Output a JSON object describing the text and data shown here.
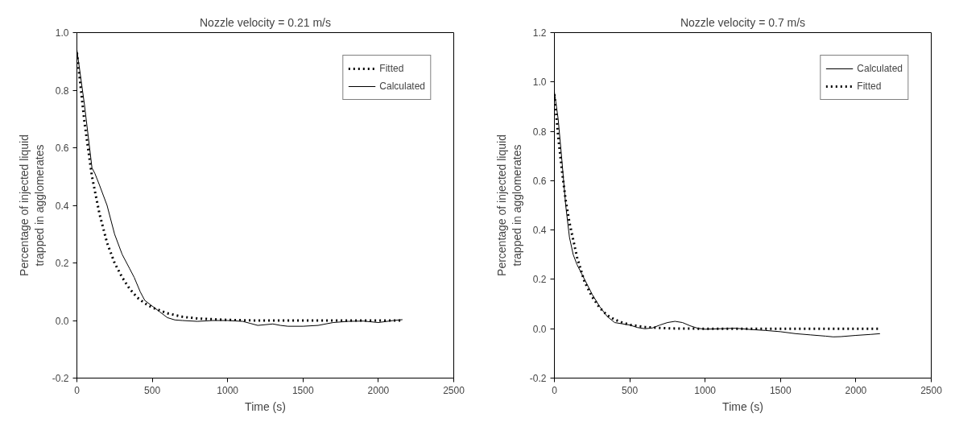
{
  "chart_data": [
    {
      "type": "line",
      "title": "Nozzle velocity = 0.21 m/s",
      "xlabel": "Time (s)",
      "ylabel": "Percentage of injected liquid\ntrapped in agglomerates",
      "xlim": [
        0,
        2500
      ],
      "xticks": [
        0,
        500,
        1000,
        1500,
        2000,
        2500
      ],
      "ylim": [
        -0.2,
        1.0
      ],
      "yticks": [
        {
          "value": -0.2,
          "label": "-0.2"
        },
        {
          "value": 0,
          "label": "0.0"
        },
        0.2,
        0.4,
        0.6,
        0.8,
        {
          "value": 1,
          "label": "1.0"
        }
      ],
      "grid": false,
      "legend": "top right",
      "marker": "none",
      "series": [
        {
          "name": "Fitted",
          "color": "#000000",
          "line_style": "dotted",
          "x": [
            0,
            50,
            100,
            150,
            200,
            250,
            300,
            350,
            400,
            450,
            500,
            600,
            700,
            800,
            1000,
            1200,
            1500,
            1800,
            2160
          ],
          "values": [
            0.93,
            0.69,
            0.5,
            0.37,
            0.27,
            0.2,
            0.15,
            0.11,
            0.08,
            0.06,
            0.045,
            0.025,
            0.013,
            0.007,
            0.002,
            0.0,
            0.0,
            0.0,
            0.0
          ]
        },
        {
          "name": "Calculated",
          "color": "#000000",
          "line_style": "solid",
          "x": [
            0,
            50,
            100,
            120,
            150,
            200,
            250,
            300,
            350,
            380,
            420,
            450,
            500,
            550,
            600,
            650,
            700,
            800,
            900,
            1000,
            1100,
            1150,
            1200,
            1300,
            1350,
            1400,
            1500,
            1600,
            1700,
            1800,
            1900,
            2000,
            2100,
            2160
          ],
          "values": [
            0.94,
            0.75,
            0.53,
            0.51,
            0.47,
            0.4,
            0.3,
            0.23,
            0.18,
            0.15,
            0.1,
            0.07,
            0.05,
            0.03,
            0.01,
            0.002,
            0.0,
            -0.003,
            0.0,
            0.0,
            -0.003,
            -0.01,
            -0.017,
            -0.012,
            -0.017,
            -0.02,
            -0.02,
            -0.017,
            -0.007,
            -0.003,
            -0.002,
            -0.007,
            0.0,
            0.003
          ]
        }
      ]
    },
    {
      "type": "line",
      "title": "Nozzle velocity = 0.7 m/s",
      "xlabel": "Time (s)",
      "ylabel": "Percentage of injected liquid\ntrapped in agglomerates",
      "xlim": [
        0,
        2500
      ],
      "xticks": [
        0,
        500,
        1000,
        1500,
        2000,
        2500
      ],
      "ylim": [
        -0.2,
        1.2
      ],
      "yticks": [
        {
          "value": -0.2,
          "label": "-0.2"
        },
        {
          "value": 0,
          "label": "0.0"
        },
        0.2,
        0.4,
        0.6,
        0.8,
        {
          "value": 1,
          "label": "1.0"
        },
        1.2
      ],
      "grid": false,
      "legend": "top right",
      "marker": "none",
      "series": [
        {
          "name": "Calculated",
          "color": "#000000",
          "line_style": "solid",
          "x": [
            0,
            25,
            50,
            75,
            100,
            125,
            150,
            175,
            200,
            250,
            300,
            350,
            400,
            450,
            500,
            550,
            600,
            650,
            700,
            750,
            800,
            850,
            900,
            950,
            1000,
            1100,
            1200,
            1300,
            1400,
            1500,
            1600,
            1700,
            1800,
            1850,
            1900,
            2000,
            2100,
            2160
          ],
          "values": [
            0.96,
            0.85,
            0.68,
            0.5,
            0.37,
            0.3,
            0.26,
            0.23,
            0.2,
            0.14,
            0.09,
            0.05,
            0.025,
            0.02,
            0.015,
            0.005,
            0.0,
            0.003,
            0.015,
            0.025,
            0.03,
            0.025,
            0.012,
            0.002,
            -0.002,
            0.0,
            0.002,
            -0.003,
            -0.007,
            -0.012,
            -0.02,
            -0.025,
            -0.03,
            -0.033,
            -0.032,
            -0.027,
            -0.023,
            -0.02
          ]
        },
        {
          "name": "Fitted",
          "color": "#000000",
          "line_style": "dotted",
          "x": [
            0,
            25,
            50,
            75,
            100,
            150,
            200,
            250,
            300,
            350,
            400,
            450,
            500,
            600,
            700,
            800,
            1000,
            1500,
            2160
          ],
          "values": [
            0.95,
            0.78,
            0.64,
            0.52,
            0.43,
            0.29,
            0.19,
            0.13,
            0.085,
            0.055,
            0.037,
            0.025,
            0.016,
            0.007,
            0.003,
            0.001,
            0.0,
            0.0,
            0.0
          ]
        }
      ]
    }
  ]
}
